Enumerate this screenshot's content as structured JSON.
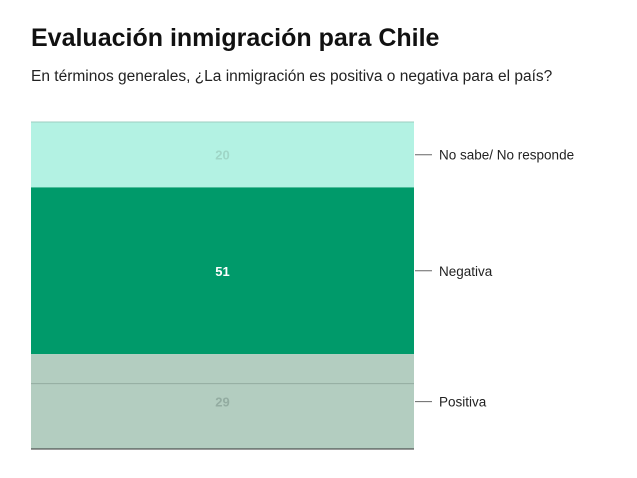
{
  "title": "Evaluación inmigración para Chile",
  "subtitle": "En términos generales, ¿La inmigración es positiva o negativa para el país?",
  "chart_data": {
    "type": "bar",
    "stacked": true,
    "orientation": "vertical",
    "categories": [
      ""
    ],
    "series": [
      {
        "name": "No sabe/ No responde",
        "values": [
          20
        ],
        "color": "#b3f2e3",
        "label_color": "#9fd6c7"
      },
      {
        "name": "Negativa",
        "values": [
          51
        ],
        "color": "#009a6a",
        "label_color": "#ffffff"
      },
      {
        "name": "Positiva",
        "values": [
          29
        ],
        "color": "#b3cdc0",
        "label_color": "#93aca1"
      }
    ],
    "ylim": [
      0,
      100
    ],
    "grid": false,
    "reference_line": 20,
    "legend": "right (labels next to segments)"
  }
}
